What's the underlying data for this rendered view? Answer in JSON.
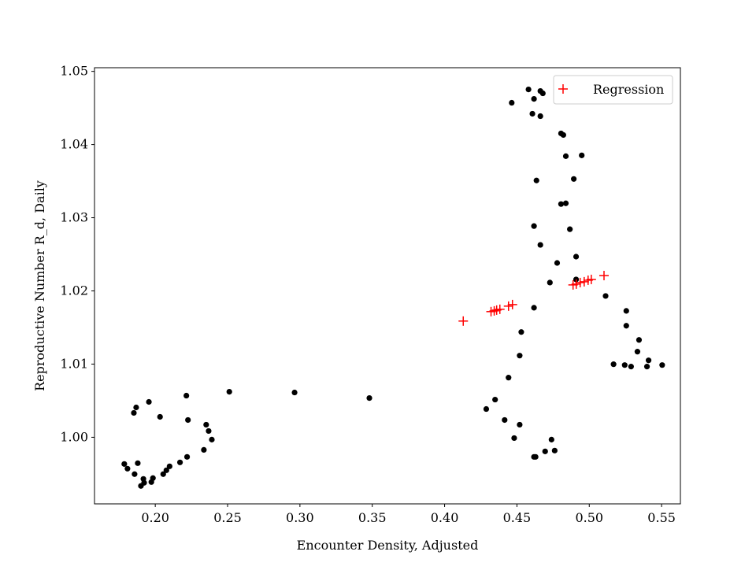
{
  "chart_data": {
    "type": "scatter",
    "title": "",
    "xlabel": "Encounter Density, Adjusted",
    "ylabel": "Reproductive Number R_d, Daily",
    "xlim": [
      0.158,
      0.563
    ],
    "ylim": [
      0.9909,
      1.0505
    ],
    "xticks": [
      "0.20",
      "0.25",
      "0.30",
      "0.35",
      "0.40",
      "0.45",
      "0.50",
      "0.55"
    ],
    "yticks": [
      "1.00",
      "1.01",
      "1.02",
      "1.03",
      "1.04",
      "1.05"
    ],
    "grid": false,
    "legend_position": "top-right",
    "series": [
      {
        "name": "",
        "marker": "circle",
        "color": "#000000",
        "points": [
          [
            0.1786,
            0.99635
          ],
          [
            0.1808,
            0.99571
          ],
          [
            0.1857,
            0.99496
          ],
          [
            0.1879,
            0.99646
          ],
          [
            0.1901,
            0.99335
          ],
          [
            0.1923,
            0.99378
          ],
          [
            0.1918,
            0.99431
          ],
          [
            0.1973,
            0.99388
          ],
          [
            0.1984,
            0.99442
          ],
          [
            0.2055,
            0.99496
          ],
          [
            0.2077,
            0.99549
          ],
          [
            0.2099,
            0.99603
          ],
          [
            0.2171,
            0.99657
          ],
          [
            0.222,
            0.99732
          ],
          [
            0.2336,
            0.99828
          ],
          [
            0.2391,
            0.99968
          ],
          [
            0.2369,
            1.00086
          ],
          [
            0.2352,
            1.00172
          ],
          [
            0.2226,
            1.00236
          ],
          [
            0.2033,
            1.00279
          ],
          [
            0.1852,
            1.00333
          ],
          [
            0.1868,
            1.00408
          ],
          [
            0.1956,
            1.00483
          ],
          [
            0.2215,
            1.00569
          ],
          [
            0.2512,
            1.00622
          ],
          [
            0.2963,
            1.00612
          ],
          [
            0.348,
            1.00536
          ],
          [
            0.4288,
            1.00386
          ],
          [
            0.4349,
            1.00515
          ],
          [
            0.4415,
            1.00236
          ],
          [
            0.4481,
            0.99989
          ],
          [
            0.4519,
            1.00172
          ],
          [
            0.4618,
            0.99732
          ],
          [
            0.4629,
            0.99732
          ],
          [
            0.4695,
            0.99807
          ],
          [
            0.4739,
            0.99968
          ],
          [
            0.4761,
            0.99818
          ],
          [
            0.4442,
            1.00815
          ],
          [
            0.4519,
            1.01116
          ],
          [
            0.453,
            1.01438
          ],
          [
            0.4618,
            1.0177
          ],
          [
            0.4728,
            1.02114
          ],
          [
            0.4909,
            1.02157
          ],
          [
            0.4909,
            1.02468
          ],
          [
            0.4778,
            1.02382
          ],
          [
            0.4662,
            1.02629
          ],
          [
            0.4618,
            1.02886
          ],
          [
            0.4866,
            1.02843
          ],
          [
            0.4805,
            1.03187
          ],
          [
            0.4838,
            1.03197
          ],
          [
            0.4635,
            1.03509
          ],
          [
            0.4893,
            1.0353
          ],
          [
            0.4838,
            1.03841
          ],
          [
            0.4948,
            1.03852
          ],
          [
            0.4805,
            1.04152
          ],
          [
            0.4821,
            1.04131
          ],
          [
            0.4662,
            1.04388
          ],
          [
            0.4607,
            1.04421
          ],
          [
            0.4464,
            1.04571
          ],
          [
            0.4618,
            1.04624
          ],
          [
            0.458,
            1.04753
          ],
          [
            0.4662,
            1.04732
          ],
          [
            0.4679,
            1.047
          ],
          [
            0.5113,
            1.01931
          ],
          [
            0.5256,
            1.01727
          ],
          [
            0.5256,
            1.01524
          ],
          [
            0.5344,
            1.0133
          ],
          [
            0.5333,
            1.0117
          ],
          [
            0.541,
            1.01051
          ],
          [
            0.5399,
            1.00966
          ],
          [
            0.5168,
            1.00998
          ],
          [
            0.5245,
            1.00987
          ],
          [
            0.5289,
            1.00966
          ],
          [
            0.5504,
            1.00987
          ]
        ]
      },
      {
        "name": "Regression",
        "marker": "plus",
        "color": "#ff0000",
        "points": [
          [
            0.4129,
            1.01588
          ],
          [
            0.4321,
            1.01717
          ],
          [
            0.4343,
            1.01727
          ],
          [
            0.436,
            1.01738
          ],
          [
            0.4382,
            1.01749
          ],
          [
            0.4442,
            1.01792
          ],
          [
            0.4469,
            1.01813
          ],
          [
            0.4888,
            1.02082
          ],
          [
            0.491,
            1.02093
          ],
          [
            0.4937,
            1.02114
          ],
          [
            0.4965,
            1.02125
          ],
          [
            0.4992,
            1.02146
          ],
          [
            0.5014,
            1.02157
          ],
          [
            0.5102,
            1.0221
          ]
        ]
      }
    ]
  }
}
